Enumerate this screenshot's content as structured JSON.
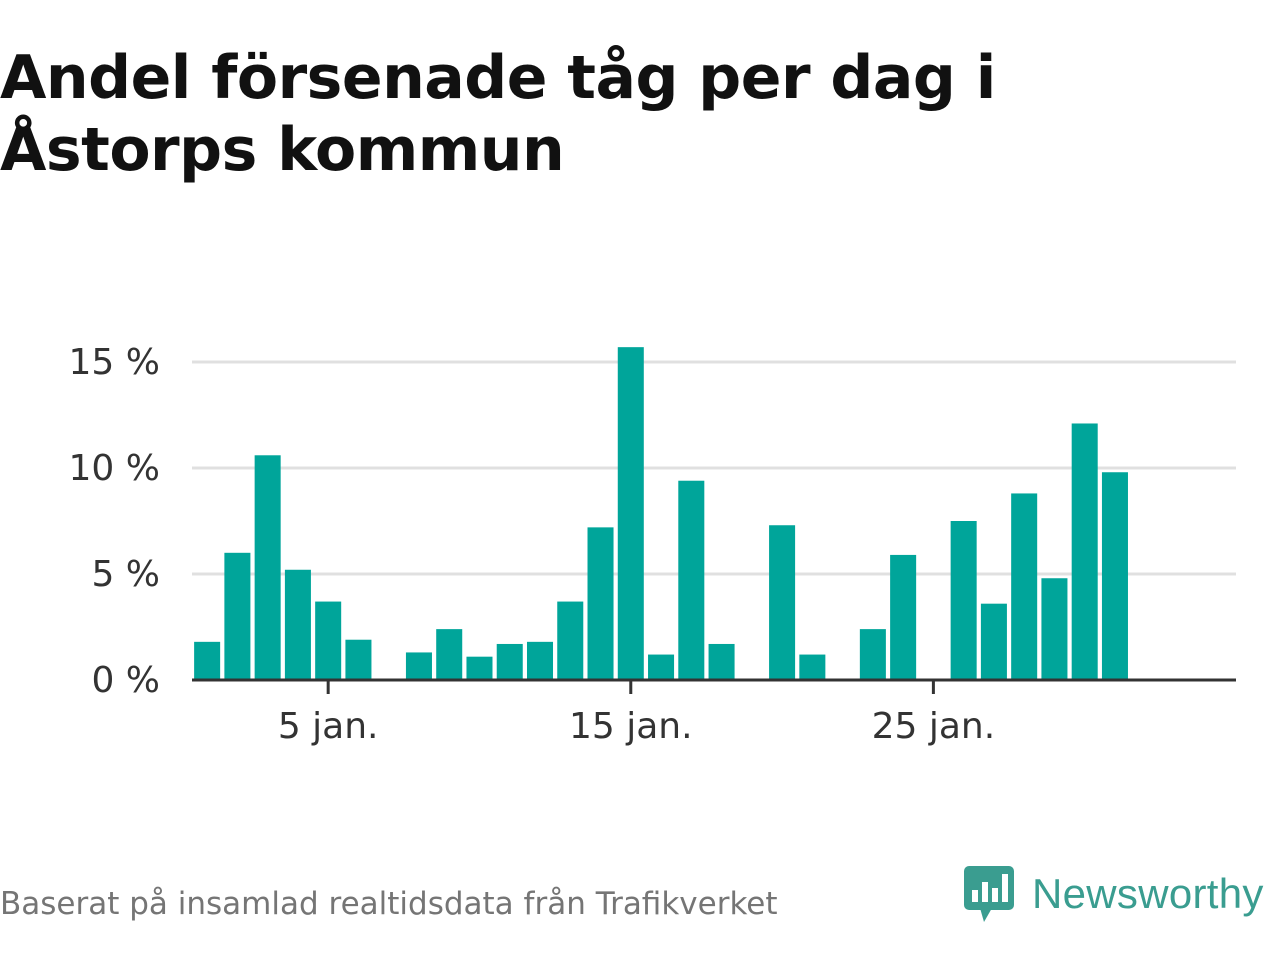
{
  "title": "Andel försenade tåg per dag i Åstorps kommun",
  "footer": {
    "source": "Baserat på insamlad realtidsdata från Trafikverket"
  },
  "brand": {
    "name": "Newsworthy",
    "icon": "newsworthy-logo-icon"
  },
  "colors": {
    "bar": "#00a59a",
    "grid": "#e0e0e0",
    "axis": "#333333",
    "brand": "#3a9d90"
  },
  "chart_data": {
    "type": "bar",
    "title": "Andel försenade tåg per dag i Åstorps kommun",
    "xlabel": "",
    "ylabel": "",
    "x": [
      1,
      2,
      3,
      4,
      5,
      6,
      7,
      8,
      9,
      10,
      11,
      12,
      13,
      14,
      15,
      16,
      17,
      18,
      19,
      20,
      21,
      22,
      23,
      24,
      25,
      26,
      27,
      28,
      29,
      30,
      31
    ],
    "values": [
      1.8,
      6.0,
      10.6,
      5.2,
      3.7,
      1.9,
      null,
      1.3,
      2.4,
      1.1,
      1.7,
      1.8,
      3.7,
      7.2,
      15.7,
      1.2,
      9.4,
      1.7,
      null,
      7.3,
      1.2,
      null,
      2.4,
      5.9,
      null,
      7.5,
      3.6,
      8.8,
      4.8,
      12.1,
      9.8
    ],
    "ylim": [
      0,
      15
    ],
    "yticks": [
      0,
      5,
      10,
      15
    ],
    "ytick_labels": [
      "0 %",
      "5 %",
      "10 %",
      "15 %"
    ],
    "xticks": [
      5,
      15,
      25
    ],
    "xtick_labels": [
      "5 jan.",
      "15 jan.",
      "25 jan."
    ],
    "grid": true,
    "legend": "none"
  }
}
